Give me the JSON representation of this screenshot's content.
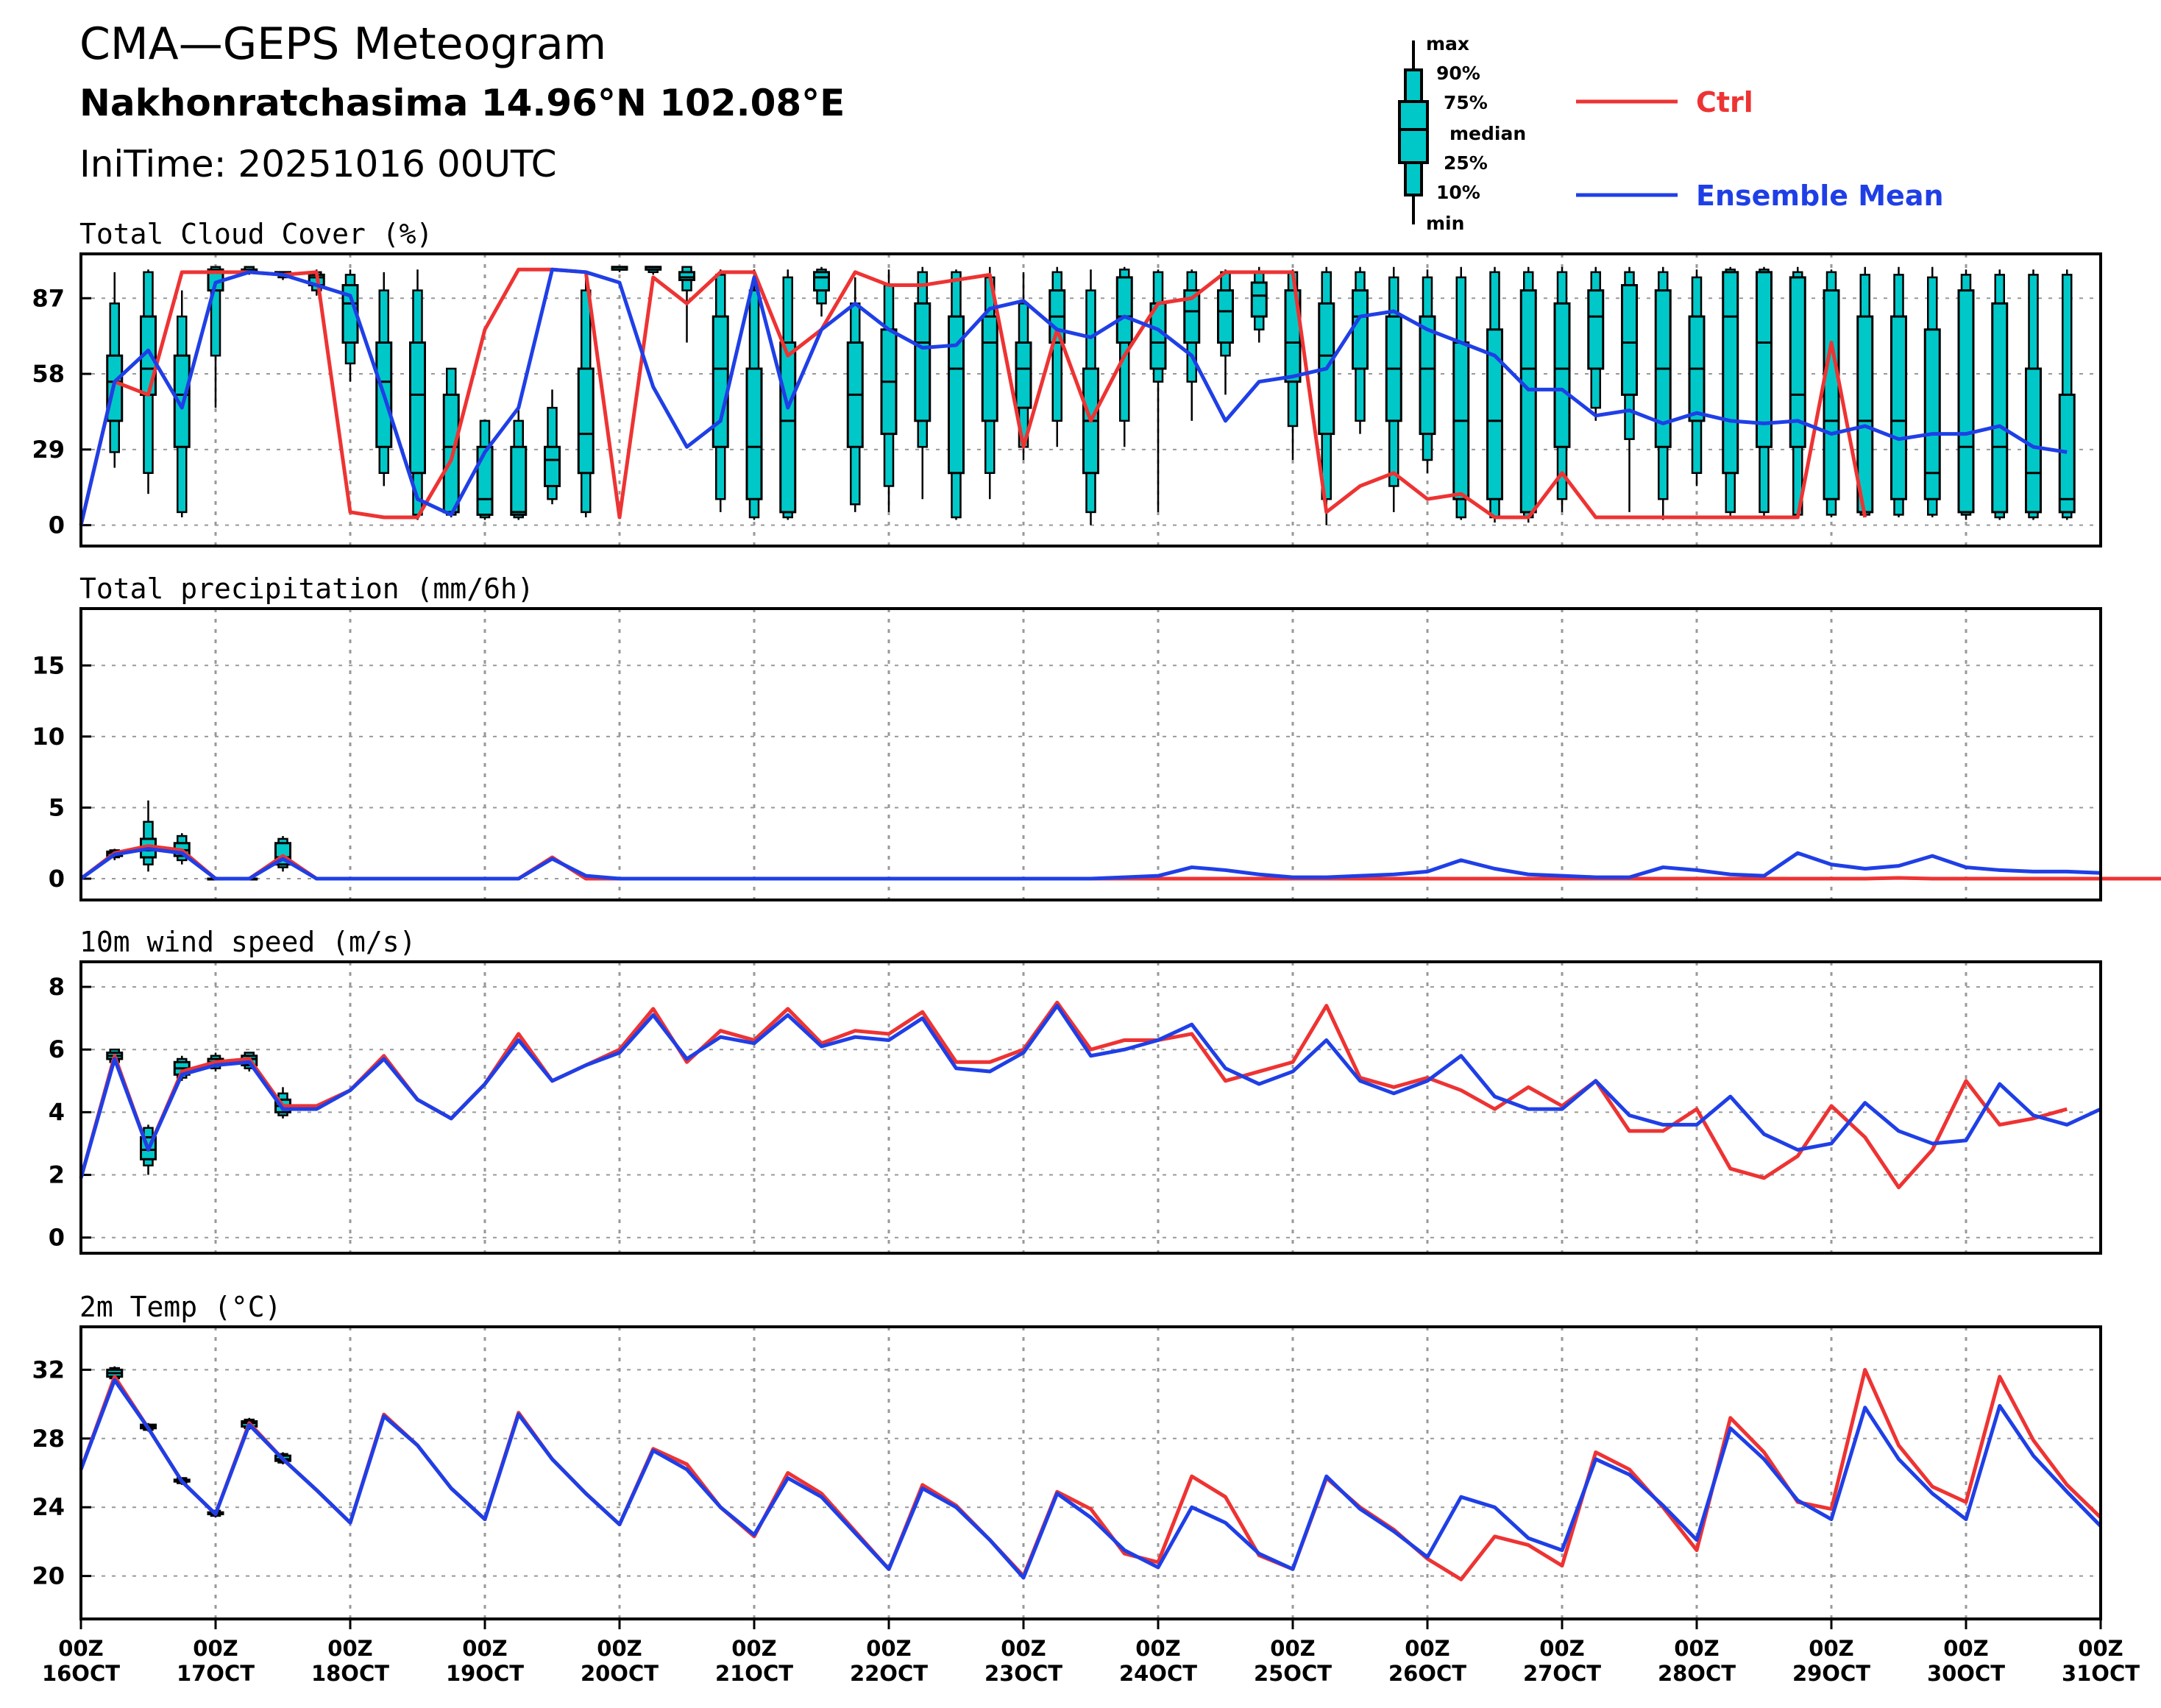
{
  "header": {
    "title": "CMA—GEPS Meteogram",
    "location": "Nakhonratchasima 14.96°N 102.08°E",
    "init": "IniTime: 20251016 00UTC"
  },
  "legend": {
    "box_labels": [
      "max",
      "90%",
      "75%",
      "median",
      "25%",
      "10%",
      "min"
    ],
    "ctrl_label": "Ctrl",
    "mean_label": "Ensemble Mean",
    "ctrl_color": "#ee3333",
    "mean_color": "#1f3fe6",
    "box_color": "#00c8c8"
  },
  "x_axis": {
    "ticks": [
      [
        "00Z",
        "16OCT"
      ],
      [
        "00Z",
        "17OCT"
      ],
      [
        "00Z",
        "18OCT"
      ],
      [
        "00Z",
        "19OCT"
      ],
      [
        "00Z",
        "20OCT"
      ],
      [
        "00Z",
        "21OCT"
      ],
      [
        "00Z",
        "22OCT"
      ],
      [
        "00Z",
        "23OCT"
      ],
      [
        "00Z",
        "24OCT"
      ],
      [
        "00Z",
        "25OCT"
      ],
      [
        "00Z",
        "26OCT"
      ],
      [
        "00Z",
        "27OCT"
      ],
      [
        "00Z",
        "28OCT"
      ],
      [
        "00Z",
        "29OCT"
      ],
      [
        "00Z",
        "30OCT"
      ],
      [
        "00Z",
        "31OCT"
      ]
    ]
  },
  "chart_data": [
    {
      "type": "box-line",
      "title": "Total Cloud Cover (%)",
      "x_unit": "days since 2025-10-16 00UTC",
      "ylim": [
        -8,
        104
      ],
      "yticks": [
        0,
        29,
        58,
        87
      ],
      "grid": true,
      "ctrl": [
        0,
        55,
        50,
        97,
        97,
        97,
        96,
        97,
        5,
        3,
        3,
        25,
        75,
        98,
        98,
        97,
        3,
        95,
        85,
        97,
        97,
        65,
        75,
        97,
        92,
        92,
        94,
        96,
        30,
        75,
        40,
        65,
        85,
        87,
        97,
        97,
        97,
        5,
        15,
        20,
        10,
        12,
        3,
        3,
        20,
        3,
        3,
        3,
        3,
        3,
        3,
        3,
        70,
        3
      ],
      "mean": [
        0,
        55,
        67,
        45,
        93,
        97,
        96,
        92,
        88,
        50,
        10,
        4,
        28,
        45,
        98,
        97,
        93,
        53,
        30,
        40,
        95,
        45,
        75,
        85,
        75,
        68,
        69,
        83,
        86,
        75,
        72,
        80,
        75,
        65,
        40,
        55,
        57,
        60,
        80,
        82,
        75,
        70,
        65,
        52,
        52,
        42,
        44,
        39,
        43,
        40,
        39,
        40,
        35,
        38,
        33,
        35,
        35,
        38,
        30,
        28
      ],
      "boxes": [
        [
          null,
          null,
          null,
          null,
          null,
          null,
          null
        ],
        [
          22,
          28,
          40,
          55,
          65,
          85,
          97
        ],
        [
          12,
          20,
          50,
          60,
          80,
          97,
          98
        ],
        [
          3,
          5,
          30,
          50,
          65,
          80,
          90
        ],
        [
          45,
          65,
          90,
          97,
          98,
          99,
          99
        ],
        [
          96,
          97,
          97,
          97,
          98,
          99,
          99
        ],
        [
          94,
          95,
          96,
          96,
          97,
          97,
          97
        ],
        [
          88,
          90,
          92,
          95,
          96,
          97,
          98
        ],
        [
          55,
          62,
          70,
          85,
          92,
          96,
          98
        ],
        [
          15,
          20,
          30,
          55,
          70,
          90,
          97
        ],
        [
          2,
          4,
          20,
          50,
          70,
          90,
          98
        ],
        [
          3,
          4,
          5,
          30,
          50,
          60,
          60
        ],
        [
          2,
          3,
          4,
          10,
          30,
          40,
          40
        ],
        [
          2,
          3,
          4,
          5,
          30,
          40,
          45
        ],
        [
          8,
          10,
          15,
          25,
          30,
          45,
          52
        ],
        [
          3,
          5,
          20,
          35,
          60,
          90,
          97
        ],
        [
          97,
          98,
          98,
          98,
          99,
          99,
          99
        ],
        [
          96,
          97,
          98,
          98,
          99,
          99,
          99
        ],
        [
          70,
          90,
          94,
          95,
          97,
          99,
          99
        ],
        [
          5,
          10,
          30,
          60,
          80,
          96,
          98
        ],
        [
          2,
          3,
          10,
          30,
          60,
          90,
          98
        ],
        [
          2,
          3,
          5,
          40,
          70,
          95,
          98
        ],
        [
          80,
          85,
          90,
          95,
          97,
          98,
          99
        ],
        [
          5,
          8,
          30,
          50,
          70,
          85,
          95
        ],
        [
          5,
          15,
          35,
          55,
          75,
          92,
          98
        ],
        [
          10,
          30,
          40,
          70,
          85,
          97,
          99
        ],
        [
          2,
          3,
          20,
          60,
          80,
          97,
          98
        ],
        [
          10,
          20,
          40,
          70,
          80,
          95,
          99
        ],
        [
          25,
          30,
          45,
          60,
          70,
          85,
          97
        ],
        [
          30,
          40,
          70,
          80,
          90,
          97,
          99
        ],
        [
          0,
          5,
          20,
          40,
          60,
          90,
          98
        ],
        [
          30,
          40,
          70,
          80,
          95,
          98,
          99
        ],
        [
          5,
          55,
          60,
          70,
          85,
          97,
          98
        ],
        [
          40,
          55,
          70,
          82,
          90,
          97,
          98
        ],
        [
          50,
          65,
          70,
          82,
          90,
          97,
          98
        ],
        [
          70,
          75,
          80,
          88,
          93,
          97,
          99
        ],
        [
          25,
          38,
          55,
          70,
          90,
          97,
          98
        ],
        [
          0,
          10,
          35,
          65,
          85,
          97,
          99
        ],
        [
          35,
          40,
          60,
          80,
          90,
          97,
          99
        ],
        [
          5,
          15,
          40,
          60,
          80,
          95,
          99
        ],
        [
          20,
          25,
          35,
          60,
          80,
          95,
          98
        ],
        [
          2,
          3,
          10,
          40,
          70,
          95,
          99
        ],
        [
          1,
          3,
          10,
          40,
          75,
          97,
          99
        ],
        [
          1,
          3,
          5,
          60,
          90,
          97,
          99
        ],
        [
          5,
          10,
          30,
          60,
          85,
          97,
          99
        ],
        [
          40,
          45,
          60,
          80,
          90,
          97,
          99
        ],
        [
          5,
          33,
          50,
          70,
          92,
          97,
          99
        ],
        [
          2,
          10,
          30,
          60,
          90,
          97,
          99
        ],
        [
          15,
          20,
          40,
          60,
          80,
          95,
          98
        ],
        [
          3,
          5,
          20,
          80,
          97,
          98,
          99
        ],
        [
          3,
          5,
          30,
          70,
          97,
          98,
          99
        ],
        [
          3,
          4,
          30,
          50,
          95,
          97,
          99
        ],
        [
          3,
          4,
          10,
          40,
          90,
          97,
          98
        ],
        [
          3,
          4,
          5,
          40,
          80,
          96,
          99
        ],
        [
          3,
          4,
          10,
          40,
          80,
          96,
          99
        ],
        [
          3,
          4,
          10,
          20,
          75,
          95,
          99
        ],
        [
          2,
          4,
          5,
          30,
          90,
          96,
          98
        ],
        [
          2,
          3,
          5,
          30,
          85,
          96,
          98
        ],
        [
          2,
          3,
          5,
          20,
          60,
          96,
          98
        ],
        [
          2,
          3,
          5,
          10,
          50,
          96,
          98
        ]
      ]
    },
    {
      "type": "box-line",
      "title": "Total precipitation (mm/6h)",
      "ylim": [
        -1.5,
        19
      ],
      "yticks": [
        0,
        5,
        10,
        15
      ],
      "grid": true,
      "ctrl": [
        0,
        1.8,
        2.3,
        2.0,
        0,
        0,
        1.6,
        0,
        0,
        0,
        0,
        0,
        0,
        0,
        1.5,
        0,
        0,
        0,
        0,
        0,
        0,
        0,
        0,
        0,
        0,
        0,
        0,
        0,
        0,
        0,
        0,
        0,
        0,
        0,
        0,
        0,
        0,
        0,
        0,
        0,
        0,
        0,
        0,
        0,
        0,
        0,
        0,
        0,
        0,
        0,
        0,
        0,
        0,
        0,
        0.05,
        0,
        0,
        0,
        0,
        0,
        0,
        0,
        0
      ],
      "mean": [
        0,
        1.7,
        2.1,
        1.8,
        0,
        0,
        1.4,
        0,
        0,
        0,
        0,
        0,
        0,
        0,
        1.4,
        0.2,
        0,
        0,
        0,
        0,
        0,
        0,
        0,
        0,
        0,
        0,
        0,
        0,
        0,
        0,
        0,
        0.1,
        0.2,
        0.8,
        0.6,
        0.3,
        0.1,
        0.1,
        0.2,
        0.3,
        0.5,
        1.3,
        0.7,
        0.3,
        0.2,
        0.1,
        0.1,
        0.8,
        0.6,
        0.3,
        0.2,
        1.8,
        1.0,
        0.7,
        0.9,
        1.6,
        0.8,
        0.6,
        0.5,
        0.5,
        0.4
      ],
      "boxes": [
        [
          null,
          null,
          null,
          null,
          null,
          null,
          null
        ],
        [
          1.3,
          1.5,
          1.6,
          1.8,
          1.9,
          2.0,
          2.1
        ],
        [
          0.5,
          1.0,
          1.5,
          2.0,
          2.8,
          4.0,
          5.5
        ],
        [
          1.0,
          1.3,
          1.6,
          2.0,
          2.5,
          3.0,
          3.2
        ],
        [
          0,
          0,
          0,
          0,
          0,
          0,
          0
        ],
        [
          0,
          0,
          0,
          0,
          0,
          0,
          0
        ],
        [
          0.5,
          0.8,
          1.0,
          1.5,
          2.5,
          2.8,
          3.0
        ]
      ]
    },
    {
      "type": "box-line",
      "title": "10m wind speed (m/s)",
      "ylim": [
        -0.5,
        8.8
      ],
      "yticks": [
        0,
        2,
        4,
        6,
        8
      ],
      "grid": true,
      "ctrl": [
        1.9,
        5.8,
        2.8,
        5.3,
        5.6,
        5.7,
        4.2,
        4.2,
        4.7,
        5.8,
        4.4,
        3.8,
        4.9,
        6.5,
        5.0,
        5.5,
        6.0,
        7.3,
        5.6,
        6.6,
        6.3,
        7.3,
        6.2,
        6.6,
        6.5,
        7.2,
        5.6,
        5.6,
        6.0,
        7.5,
        6.0,
        6.3,
        6.3,
        6.5,
        5.0,
        5.3,
        5.6,
        7.4,
        5.1,
        4.8,
        5.1,
        4.7,
        4.1,
        4.8,
        4.2,
        5.0,
        3.4,
        3.4,
        4.1,
        2.2,
        1.9,
        2.6,
        4.2,
        3.2,
        1.6,
        2.8,
        5.0,
        3.6,
        3.8,
        4.1
      ],
      "mean": [
        1.9,
        5.7,
        2.8,
        5.2,
        5.5,
        5.6,
        4.1,
        4.1,
        4.7,
        5.7,
        4.4,
        3.8,
        4.9,
        6.3,
        5.0,
        5.5,
        5.9,
        7.1,
        5.7,
        6.4,
        6.2,
        7.1,
        6.1,
        6.4,
        6.3,
        7.0,
        5.4,
        5.3,
        5.9,
        7.4,
        5.8,
        6.0,
        6.3,
        6.8,
        5.4,
        4.9,
        5.3,
        6.3,
        5.0,
        4.6,
        5.0,
        5.8,
        4.5,
        4.1,
        4.1,
        5.0,
        3.9,
        3.6,
        3.6,
        4.5,
        3.3,
        2.8,
        3.0,
        4.3,
        3.4,
        3.0,
        3.1,
        4.9,
        3.9,
        3.6,
        4.1
      ],
      "boxes": [
        [
          null,
          null,
          null,
          null,
          null,
          null,
          null
        ],
        [
          5.5,
          5.6,
          5.7,
          5.8,
          5.9,
          6.0,
          6.0
        ],
        [
          2.0,
          2.3,
          2.5,
          2.8,
          3.2,
          3.5,
          3.6
        ],
        [
          5.0,
          5.1,
          5.2,
          5.4,
          5.6,
          5.7,
          5.8
        ],
        [
          5.3,
          5.4,
          5.5,
          5.6,
          5.7,
          5.8,
          5.9
        ],
        [
          5.3,
          5.4,
          5.5,
          5.7,
          5.8,
          5.9,
          5.9
        ],
        [
          3.8,
          3.9,
          4.0,
          4.2,
          4.4,
          4.6,
          4.8
        ]
      ]
    },
    {
      "type": "box-line",
      "title": "2m Temp (°C)",
      "ylim": [
        17.5,
        34.5
      ],
      "yticks": [
        20,
        24,
        28,
        32
      ],
      "grid": true,
      "ctrl": [
        26.2,
        31.6,
        28.6,
        25.5,
        23.6,
        28.9,
        26.8,
        25.0,
        23.1,
        29.4,
        27.6,
        25.1,
        23.3,
        29.5,
        26.8,
        24.8,
        23.0,
        27.4,
        26.5,
        24.0,
        22.3,
        26.0,
        24.8,
        22.6,
        20.4,
        25.3,
        24.1,
        22.1,
        20.0,
        24.9,
        23.9,
        21.3,
        20.8,
        25.8,
        24.6,
        21.2,
        20.4,
        25.7,
        24.0,
        22.7,
        21.0,
        19.8,
        22.3,
        21.8,
        20.6,
        27.2,
        26.2,
        24.0,
        21.5,
        29.2,
        27.2,
        24.3,
        23.9,
        32.0,
        27.6,
        25.2,
        24.3,
        31.6,
        27.9,
        25.3,
        23.4
      ],
      "mean": [
        26.2,
        31.4,
        28.6,
        25.5,
        23.6,
        28.8,
        26.8,
        25.0,
        23.1,
        29.3,
        27.6,
        25.1,
        23.3,
        29.4,
        26.8,
        24.8,
        23.0,
        27.3,
        26.2,
        24.0,
        22.4,
        25.7,
        24.6,
        22.5,
        20.4,
        25.1,
        24.0,
        22.1,
        19.9,
        24.8,
        23.4,
        21.5,
        20.5,
        24.0,
        23.1,
        21.3,
        20.4,
        25.8,
        23.9,
        22.6,
        21.1,
        24.6,
        24.0,
        22.2,
        21.5,
        26.8,
        25.9,
        24.1,
        22.1,
        28.6,
        26.8,
        24.4,
        23.3,
        29.8,
        26.8,
        24.8,
        23.3,
        29.9,
        27.0,
        24.9,
        22.9
      ],
      "boxes": [
        [
          null,
          null,
          null,
          null,
          null,
          null,
          null
        ],
        [
          31.3,
          31.5,
          31.6,
          31.8,
          32.0,
          32.1,
          32.2
        ],
        [
          28.4,
          28.5,
          28.6,
          28.7,
          28.8,
          28.8,
          28.9
        ],
        [
          25.3,
          25.4,
          25.5,
          25.5,
          25.6,
          25.7,
          25.7
        ],
        [
          23.4,
          23.5,
          23.6,
          23.6,
          23.7,
          23.8,
          23.8
        ],
        [
          28.5,
          28.6,
          28.7,
          28.9,
          29.0,
          29.1,
          29.2
        ],
        [
          26.5,
          26.6,
          26.7,
          26.8,
          27.0,
          27.1,
          27.2
        ]
      ]
    }
  ]
}
